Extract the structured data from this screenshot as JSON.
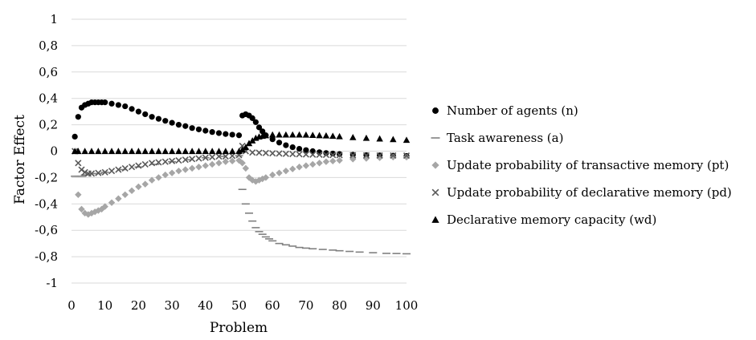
{
  "chart_data": {
    "type": "scatter",
    "xlabel": "Problem",
    "ylabel": "Factor Effect",
    "xlim": [
      0,
      100
    ],
    "ylim": [
      -1,
      1
    ],
    "xticks": [
      "0",
      "10",
      "20",
      "30",
      "40",
      "50",
      "60",
      "70",
      "80",
      "90",
      "100"
    ],
    "yticks": [
      "1",
      "0,8",
      "0,6",
      "0,4",
      "0,2",
      "0",
      "-0,2",
      "-0,4",
      "-0,6",
      "-0,8",
      "-1"
    ],
    "grid": "horizontal",
    "legend_position": "right",
    "series": [
      {
        "name": "Number of agents (n)",
        "marker": "circle",
        "color": "#000000",
        "points": [
          [
            1,
            0.11
          ],
          [
            2,
            0.26
          ],
          [
            3,
            0.33
          ],
          [
            4,
            0.35
          ],
          [
            5,
            0.36
          ],
          [
            6,
            0.37
          ],
          [
            7,
            0.37
          ],
          [
            8,
            0.37
          ],
          [
            9,
            0.37
          ],
          [
            10,
            0.37
          ],
          [
            12,
            0.36
          ],
          [
            14,
            0.35
          ],
          [
            16,
            0.34
          ],
          [
            18,
            0.32
          ],
          [
            20,
            0.3
          ],
          [
            22,
            0.28
          ],
          [
            24,
            0.26
          ],
          [
            26,
            0.245
          ],
          [
            28,
            0.23
          ],
          [
            30,
            0.215
          ],
          [
            32,
            0.2
          ],
          [
            34,
            0.19
          ],
          [
            36,
            0.175
          ],
          [
            38,
            0.165
          ],
          [
            40,
            0.155
          ],
          [
            42,
            0.145
          ],
          [
            44,
            0.137
          ],
          [
            46,
            0.13
          ],
          [
            48,
            0.125
          ],
          [
            50,
            0.12
          ],
          [
            51,
            0.27
          ],
          [
            52,
            0.28
          ],
          [
            53,
            0.27
          ],
          [
            54,
            0.25
          ],
          [
            55,
            0.22
          ],
          [
            56,
            0.18
          ],
          [
            57,
            0.15
          ],
          [
            58,
            0.12
          ],
          [
            60,
            0.09
          ],
          [
            62,
            0.065
          ],
          [
            64,
            0.045
          ],
          [
            66,
            0.03
          ],
          [
            68,
            0.018
          ],
          [
            70,
            0.008
          ],
          [
            72,
            0.0
          ],
          [
            74,
            -0.008
          ],
          [
            76,
            -0.014
          ],
          [
            78,
            -0.018
          ],
          [
            80,
            -0.022
          ],
          [
            84,
            -0.027
          ],
          [
            88,
            -0.03
          ],
          [
            92,
            -0.032
          ],
          [
            96,
            -0.034
          ],
          [
            100,
            -0.036
          ]
        ]
      },
      {
        "name": "Task awareness (a)",
        "marker": "dash",
        "color": "#808080",
        "points": [
          [
            1,
            -0.19
          ],
          [
            2,
            -0.19
          ],
          [
            3,
            -0.19
          ],
          [
            4,
            -0.18
          ],
          [
            6,
            -0.17
          ],
          [
            8,
            -0.17
          ],
          [
            10,
            -0.16
          ],
          [
            15,
            -0.14
          ],
          [
            20,
            -0.12
          ],
          [
            25,
            -0.1
          ],
          [
            30,
            -0.08
          ],
          [
            35,
            -0.065
          ],
          [
            40,
            -0.05
          ],
          [
            45,
            -0.04
          ],
          [
            50,
            -0.035
          ],
          [
            51,
            -0.29
          ],
          [
            52,
            -0.4
          ],
          [
            53,
            -0.47
          ],
          [
            54,
            -0.53
          ],
          [
            55,
            -0.58
          ],
          [
            56,
            -0.61
          ],
          [
            57,
            -0.63
          ],
          [
            58,
            -0.65
          ],
          [
            59,
            -0.665
          ],
          [
            60,
            -0.68
          ],
          [
            62,
            -0.7
          ],
          [
            64,
            -0.71
          ],
          [
            66,
            -0.72
          ],
          [
            68,
            -0.73
          ],
          [
            70,
            -0.735
          ],
          [
            72,
            -0.74
          ],
          [
            75,
            -0.745
          ],
          [
            78,
            -0.75
          ],
          [
            80,
            -0.755
          ],
          [
            83,
            -0.76
          ],
          [
            86,
            -0.765
          ],
          [
            90,
            -0.77
          ],
          [
            94,
            -0.775
          ],
          [
            97,
            -0.776
          ],
          [
            100,
            -0.778
          ]
        ]
      },
      {
        "name": "Update probability of transactive memory (pt)",
        "marker": "diamond",
        "color": "#a6a6a6",
        "points": [
          [
            2,
            -0.33
          ],
          [
            3,
            -0.44
          ],
          [
            4,
            -0.47
          ],
          [
            5,
            -0.48
          ],
          [
            6,
            -0.47
          ],
          [
            7,
            -0.46
          ],
          [
            8,
            -0.45
          ],
          [
            9,
            -0.44
          ],
          [
            10,
            -0.42
          ],
          [
            12,
            -0.39
          ],
          [
            14,
            -0.36
          ],
          [
            16,
            -0.33
          ],
          [
            18,
            -0.3
          ],
          [
            20,
            -0.27
          ],
          [
            22,
            -0.25
          ],
          [
            24,
            -0.22
          ],
          [
            26,
            -0.2
          ],
          [
            28,
            -0.18
          ],
          [
            30,
            -0.165
          ],
          [
            32,
            -0.15
          ],
          [
            34,
            -0.14
          ],
          [
            36,
            -0.13
          ],
          [
            38,
            -0.12
          ],
          [
            40,
            -0.11
          ],
          [
            42,
            -0.1
          ],
          [
            44,
            -0.09
          ],
          [
            46,
            -0.08
          ],
          [
            48,
            -0.075
          ],
          [
            50,
            -0.07
          ],
          [
            51,
            -0.09
          ],
          [
            52,
            -0.13
          ],
          [
            53,
            -0.2
          ],
          [
            54,
            -0.22
          ],
          [
            55,
            -0.23
          ],
          [
            56,
            -0.22
          ],
          [
            57,
            -0.21
          ],
          [
            58,
            -0.2
          ],
          [
            60,
            -0.18
          ],
          [
            62,
            -0.165
          ],
          [
            64,
            -0.15
          ],
          [
            66,
            -0.135
          ],
          [
            68,
            -0.12
          ],
          [
            70,
            -0.11
          ],
          [
            72,
            -0.1
          ],
          [
            74,
            -0.09
          ],
          [
            76,
            -0.08
          ],
          [
            78,
            -0.075
          ],
          [
            80,
            -0.07
          ],
          [
            84,
            -0.06
          ],
          [
            88,
            -0.055
          ],
          [
            92,
            -0.05
          ],
          [
            96,
            -0.045
          ],
          [
            100,
            -0.045
          ]
        ]
      },
      {
        "name": "Update probability of declarative memory (pd)",
        "marker": "x",
        "color": "#595959",
        "points": [
          [
            1,
            0.0
          ],
          [
            2,
            -0.09
          ],
          [
            3,
            -0.14
          ],
          [
            4,
            -0.16
          ],
          [
            5,
            -0.17
          ],
          [
            6,
            -0.17
          ],
          [
            8,
            -0.165
          ],
          [
            10,
            -0.16
          ],
          [
            12,
            -0.15
          ],
          [
            14,
            -0.14
          ],
          [
            16,
            -0.13
          ],
          [
            18,
            -0.12
          ],
          [
            20,
            -0.11
          ],
          [
            22,
            -0.1
          ],
          [
            24,
            -0.09
          ],
          [
            26,
            -0.085
          ],
          [
            28,
            -0.08
          ],
          [
            30,
            -0.075
          ],
          [
            32,
            -0.07
          ],
          [
            34,
            -0.065
          ],
          [
            36,
            -0.06
          ],
          [
            38,
            -0.055
          ],
          [
            40,
            -0.05
          ],
          [
            42,
            -0.045
          ],
          [
            44,
            -0.04
          ],
          [
            46,
            -0.04
          ],
          [
            48,
            -0.035
          ],
          [
            50,
            -0.03
          ],
          [
            51,
            0.04
          ],
          [
            52,
            0.0
          ],
          [
            54,
            -0.01
          ],
          [
            56,
            -0.012
          ],
          [
            58,
            -0.014
          ],
          [
            60,
            -0.016
          ],
          [
            62,
            -0.018
          ],
          [
            64,
            -0.02
          ],
          [
            66,
            -0.022
          ],
          [
            68,
            -0.023
          ],
          [
            70,
            -0.025
          ],
          [
            72,
            -0.026
          ],
          [
            74,
            -0.027
          ],
          [
            76,
            -0.028
          ],
          [
            78,
            -0.029
          ],
          [
            80,
            -0.03
          ],
          [
            84,
            -0.031
          ],
          [
            88,
            -0.032
          ],
          [
            92,
            -0.033
          ],
          [
            96,
            -0.033
          ],
          [
            100,
            -0.034
          ]
        ]
      },
      {
        "name": "Declarative memory capacity (wd)",
        "marker": "triangle",
        "color": "#000000",
        "points": [
          [
            1,
            0.0
          ],
          [
            2,
            0.0
          ],
          [
            4,
            0.0
          ],
          [
            6,
            0.0
          ],
          [
            8,
            0.0
          ],
          [
            10,
            0.0
          ],
          [
            12,
            0.0
          ],
          [
            14,
            0.0
          ],
          [
            16,
            0.0
          ],
          [
            18,
            0.0
          ],
          [
            20,
            0.0
          ],
          [
            22,
            0.0
          ],
          [
            24,
            0.0
          ],
          [
            26,
            0.0
          ],
          [
            28,
            0.0
          ],
          [
            30,
            0.0
          ],
          [
            32,
            0.0
          ],
          [
            34,
            0.0
          ],
          [
            36,
            0.0
          ],
          [
            38,
            0.0
          ],
          [
            40,
            0.0
          ],
          [
            42,
            0.0
          ],
          [
            44,
            0.0
          ],
          [
            46,
            0.0
          ],
          [
            48,
            0.0
          ],
          [
            50,
            0.0
          ],
          [
            51,
            0.01
          ],
          [
            52,
            0.03
          ],
          [
            53,
            0.06
          ],
          [
            54,
            0.08
          ],
          [
            55,
            0.1
          ],
          [
            56,
            0.11
          ],
          [
            57,
            0.115
          ],
          [
            58,
            0.12
          ],
          [
            60,
            0.125
          ],
          [
            62,
            0.125
          ],
          [
            64,
            0.125
          ],
          [
            66,
            0.125
          ],
          [
            68,
            0.125
          ],
          [
            70,
            0.124
          ],
          [
            72,
            0.122
          ],
          [
            74,
            0.12
          ],
          [
            76,
            0.118
          ],
          [
            78,
            0.115
          ],
          [
            80,
            0.112
          ],
          [
            84,
            0.105
          ],
          [
            88,
            0.1
          ],
          [
            92,
            0.095
          ],
          [
            96,
            0.09
          ],
          [
            100,
            0.085
          ]
        ]
      }
    ]
  }
}
